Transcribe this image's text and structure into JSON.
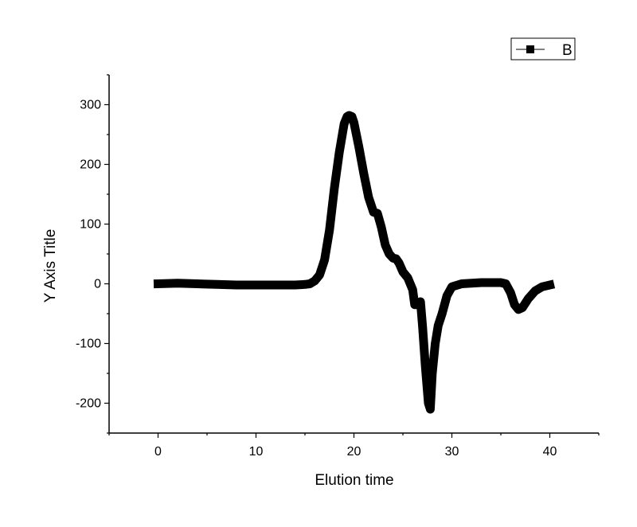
{
  "chart_data": {
    "type": "line",
    "xlabel": "Elution time",
    "ylabel": "Y Axis Title",
    "xlim": [
      -5,
      45
    ],
    "ylim": [
      -250,
      350
    ],
    "x_ticks": [
      0,
      10,
      20,
      30,
      40
    ],
    "y_ticks": [
      -200,
      -100,
      0,
      100,
      200,
      300
    ],
    "grid": false,
    "legend": {
      "position": "top-right",
      "entries": [
        "B"
      ]
    },
    "series": [
      {
        "name": "B",
        "color": "#000000",
        "x": [
          0,
          2,
          4,
          6,
          8,
          10,
          12,
          14,
          15,
          15.5,
          16,
          16.5,
          17,
          17.5,
          18,
          18.5,
          19,
          19.3,
          19.5,
          19.8,
          20,
          20.5,
          21,
          21.5,
          22,
          22.4,
          22.8,
          23.2,
          23.6,
          24,
          24.3,
          24.6,
          25,
          25.5,
          26,
          26.2,
          26.5,
          26.8,
          27,
          27.3,
          27.6,
          27.8,
          28,
          28.3,
          28.6,
          29,
          29.5,
          30,
          31,
          32,
          33,
          34,
          35,
          35.5,
          36,
          36.4,
          36.8,
          37.2,
          37.8,
          38.5,
          39.2,
          40
        ],
        "y": [
          0,
          1,
          0,
          -1,
          -2,
          -2,
          -2,
          -2,
          -1,
          0,
          5,
          15,
          40,
          90,
          160,
          220,
          268,
          280,
          282,
          280,
          270,
          230,
          185,
          145,
          120,
          118,
          95,
          65,
          50,
          43,
          42,
          35,
          20,
          10,
          -10,
          -35,
          -35,
          -30,
          -70,
          -140,
          -200,
          -210,
          -150,
          -100,
          -70,
          -50,
          -20,
          -5,
          0,
          1,
          2,
          2,
          2,
          0,
          -15,
          -35,
          -43,
          -40,
          -25,
          -12,
          -5,
          -2
        ]
      }
    ]
  }
}
